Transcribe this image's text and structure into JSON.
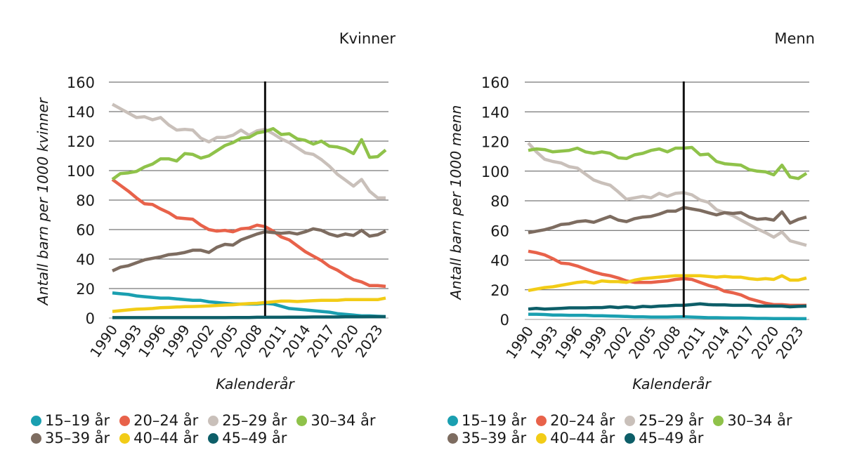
{
  "chart_data": [
    {
      "type": "line",
      "title": "Kvinner",
      "xlabel": "Kalenderår",
      "ylabel": "Antall barn per 1000 kvinner",
      "ylim": [
        0,
        160
      ],
      "yticks": [
        0,
        20,
        40,
        60,
        80,
        100,
        120,
        140,
        160
      ],
      "xticks": [
        "1990",
        "1993",
        "1996",
        "1999",
        "2002",
        "2005",
        "2008",
        "2011",
        "2014",
        "2017",
        "2020",
        "2023"
      ],
      "grid": true,
      "vertical_marker_year": 2009,
      "legend_position": "bottom",
      "x": [
        1990,
        1991,
        1992,
        1993,
        1994,
        1995,
        1996,
        1997,
        1998,
        1999,
        2000,
        2001,
        2002,
        2003,
        2004,
        2005,
        2006,
        2007,
        2008,
        2009,
        2010,
        2011,
        2012,
        2013,
        2014,
        2015,
        2016,
        2017,
        2018,
        2019,
        2020,
        2021,
        2022,
        2023,
        2024
      ],
      "series": [
        {
          "name": "15–19 år",
          "color": "#1a9fb0",
          "values": [
            17,
            16.5,
            16,
            15,
            14.5,
            14,
            13.5,
            13.5,
            13,
            12.5,
            12,
            12,
            11,
            10.5,
            10,
            9.5,
            9.5,
            9.5,
            9.5,
            10,
            9.5,
            8,
            6.5,
            6,
            5.5,
            5,
            4.5,
            4,
            3,
            2.5,
            2,
            1.5,
            1.5,
            1.2,
            1
          ]
        },
        {
          "name": "20–24 år",
          "color": "#e8624a",
          "values": [
            94,
            90,
            86,
            81.5,
            77.5,
            77,
            74,
            71.5,
            68,
            67.5,
            67,
            63,
            60,
            59,
            59.5,
            58.5,
            60.5,
            61,
            63,
            62,
            59,
            55,
            53,
            49,
            45,
            42,
            39,
            35,
            32.5,
            29,
            26,
            24.5,
            22,
            22,
            21.5
          ]
        },
        {
          "name": "25–29 år",
          "color": "#c9c0ba",
          "values": [
            145,
            142,
            139,
            136,
            136.5,
            134.5,
            136,
            131,
            127.5,
            128,
            127.5,
            122,
            119.5,
            122.5,
            122.5,
            124,
            127.5,
            124,
            127,
            128,
            125,
            121.5,
            119,
            115.5,
            112,
            111,
            107.5,
            103,
            97.5,
            93.5,
            89.5,
            94,
            86,
            81.5,
            81.5
          ]
        },
        {
          "name": "30–34 år",
          "color": "#8fc24a",
          "values": [
            94,
            98,
            98.5,
            99.5,
            102.5,
            104.5,
            108,
            108,
            106.5,
            111.5,
            111,
            108.5,
            110,
            113.5,
            117,
            119,
            122,
            122.5,
            125.5,
            126.5,
            128.5,
            124.5,
            125,
            121.5,
            120.5,
            118,
            120,
            116.5,
            116,
            114.5,
            111.5,
            121,
            109,
            109.5,
            114
          ]
        },
        {
          "name": "35–39 år",
          "color": "#7d6c60",
          "values": [
            32,
            34.5,
            35.5,
            37.5,
            39.5,
            40.5,
            41.5,
            43,
            43.5,
            44.5,
            46,
            46,
            44.5,
            48,
            50,
            49.5,
            53,
            55,
            57,
            58.5,
            58,
            57.5,
            58,
            57,
            58.5,
            60.5,
            59.5,
            57,
            55.5,
            57,
            56,
            59.5,
            55.5,
            56.5,
            59
          ]
        },
        {
          "name": "40–44 år",
          "color": "#f2cc17",
          "values": [
            4.5,
            5,
            5.5,
            6,
            6.2,
            6.5,
            7,
            7.2,
            7.5,
            7.7,
            7.8,
            8,
            8.2,
            8.5,
            8.8,
            9,
            9.5,
            9.8,
            10,
            10.5,
            11,
            11.5,
            11.5,
            11.2,
            11.5,
            11.8,
            12,
            12,
            12,
            12.5,
            12.5,
            12.5,
            12.5,
            12.5,
            13.5
          ]
        },
        {
          "name": "45–49 år",
          "color": "#0d5e68",
          "values": [
            0.3,
            0.3,
            0.3,
            0.3,
            0.3,
            0.3,
            0.3,
            0.3,
            0.3,
            0.3,
            0.3,
            0.3,
            0.3,
            0.3,
            0.3,
            0.4,
            0.4,
            0.4,
            0.5,
            0.5,
            0.5,
            0.5,
            0.6,
            0.6,
            0.6,
            0.7,
            0.7,
            0.7,
            0.7,
            0.8,
            0.8,
            0.8,
            0.9,
            0.9,
            0.9
          ]
        }
      ]
    },
    {
      "type": "line",
      "title": "Menn",
      "xlabel": "Kalenderår",
      "ylabel": "Antall barn per 1000 menn",
      "ylim": [
        0,
        160
      ],
      "yticks": [
        0,
        20,
        40,
        60,
        80,
        100,
        120,
        140,
        160
      ],
      "xticks": [
        "1990",
        "1993",
        "1996",
        "1999",
        "2002",
        "2005",
        "2008",
        "2011",
        "2014",
        "2017",
        "2020",
        "2023"
      ],
      "grid": true,
      "vertical_marker_year": 2009,
      "legend_position": "bottom",
      "x": [
        1990,
        1991,
        1992,
        1993,
        1994,
        1995,
        1996,
        1997,
        1998,
        1999,
        2000,
        2001,
        2002,
        2003,
        2004,
        2005,
        2006,
        2007,
        2008,
        2009,
        2010,
        2011,
        2012,
        2013,
        2014,
        2015,
        2016,
        2017,
        2018,
        2019,
        2020,
        2021,
        2022,
        2023,
        2024
      ],
      "series": [
        {
          "name": "15–19 år",
          "color": "#1a9fb0",
          "values": [
            3.5,
            3.5,
            3.3,
            3,
            3,
            2.8,
            2.8,
            2.8,
            2.5,
            2.5,
            2.3,
            2.2,
            2,
            1.8,
            1.8,
            1.6,
            1.6,
            1.6,
            1.7,
            1.8,
            1.6,
            1.4,
            1.2,
            1.2,
            1.1,
            1,
            1,
            0.8,
            0.7,
            0.7,
            0.6,
            0.6,
            0.6,
            0.5,
            0.5
          ]
        },
        {
          "name": "20–24 år",
          "color": "#e8624a",
          "values": [
            46,
            45,
            43.5,
            41,
            38,
            37.5,
            36,
            34,
            32,
            30.5,
            29.5,
            28,
            26,
            25,
            25,
            25,
            25.5,
            26,
            27,
            27.5,
            27,
            25,
            23,
            21.5,
            19,
            18,
            16.5,
            14,
            12.5,
            11,
            10,
            10,
            9.5,
            9.5,
            9.5
          ]
        },
        {
          "name": "25–29 år",
          "color": "#c9c0ba",
          "values": [
            119,
            113,
            108,
            106.5,
            105.5,
            103,
            102,
            98,
            94,
            92,
            90.5,
            86,
            81,
            82,
            83,
            82,
            85,
            83,
            85,
            85.5,
            84,
            80.5,
            79,
            74,
            72,
            70,
            67,
            64,
            61,
            58.5,
            55.5,
            59,
            53,
            51.5,
            50
          ]
        },
        {
          "name": "35–39 år",
          "color": "#7d6c60",
          "values": [
            58.5,
            59.5,
            60.5,
            62,
            64,
            64.5,
            66,
            66.5,
            65.5,
            67.5,
            69.5,
            67,
            66,
            68,
            69,
            69.5,
            71,
            73,
            73,
            75.5,
            74.5,
            73.5,
            72,
            70.5,
            72,
            71.5,
            72,
            69,
            67.5,
            68,
            67,
            72.5,
            65,
            67.5,
            69
          ]
        },
        {
          "name": "30–34 år",
          "color": "#8fc24a",
          "values": [
            114,
            115,
            114.5,
            113,
            113.5,
            114,
            115.5,
            113,
            112,
            113,
            112,
            109,
            108.5,
            111,
            112,
            114,
            115,
            113,
            115.5,
            115.5,
            116,
            111,
            111.5,
            106.5,
            105,
            104.5,
            104,
            101,
            100,
            99.5,
            97.5,
            104,
            96,
            95,
            98.5
          ]
        },
        {
          "name": "40–44 år",
          "color": "#f2cc17",
          "values": [
            19.5,
            20.5,
            21.5,
            22,
            23,
            24,
            25,
            25.5,
            24.5,
            26,
            25.5,
            25.5,
            25,
            26.5,
            27.5,
            28,
            28.5,
            29,
            29.5,
            29.5,
            29.5,
            29.5,
            29,
            28.5,
            29,
            28.5,
            28.5,
            27.5,
            27,
            27.5,
            27,
            29.5,
            26.5,
            26.5,
            28
          ]
        },
        {
          "name": "45–49 år",
          "color": "#0d5e68",
          "values": [
            7,
            7.5,
            7,
            7.2,
            7.5,
            7.8,
            7.8,
            7.8,
            8,
            8,
            8.5,
            8,
            8.5,
            8,
            8.8,
            8.5,
            9,
            9.2,
            9.5,
            9.5,
            10,
            10.5,
            10,
            9.8,
            9.8,
            9.5,
            9.5,
            9.5,
            9,
            9,
            9,
            9,
            8.5,
            8.8,
            9
          ]
        }
      ]
    }
  ],
  "legend": [
    {
      "label": "15–19 år",
      "color": "#1a9fb0"
    },
    {
      "label": "20–24 år",
      "color": "#e8624a"
    },
    {
      "label": "25–29 år",
      "color": "#c9c0ba"
    },
    {
      "label": "30–34 år",
      "color": "#8fc24a"
    },
    {
      "label": "35–39 år",
      "color": "#7d6c60"
    },
    {
      "label": "40–44 år",
      "color": "#f2cc17"
    },
    {
      "label": "45–49 år",
      "color": "#0d5e68"
    }
  ]
}
